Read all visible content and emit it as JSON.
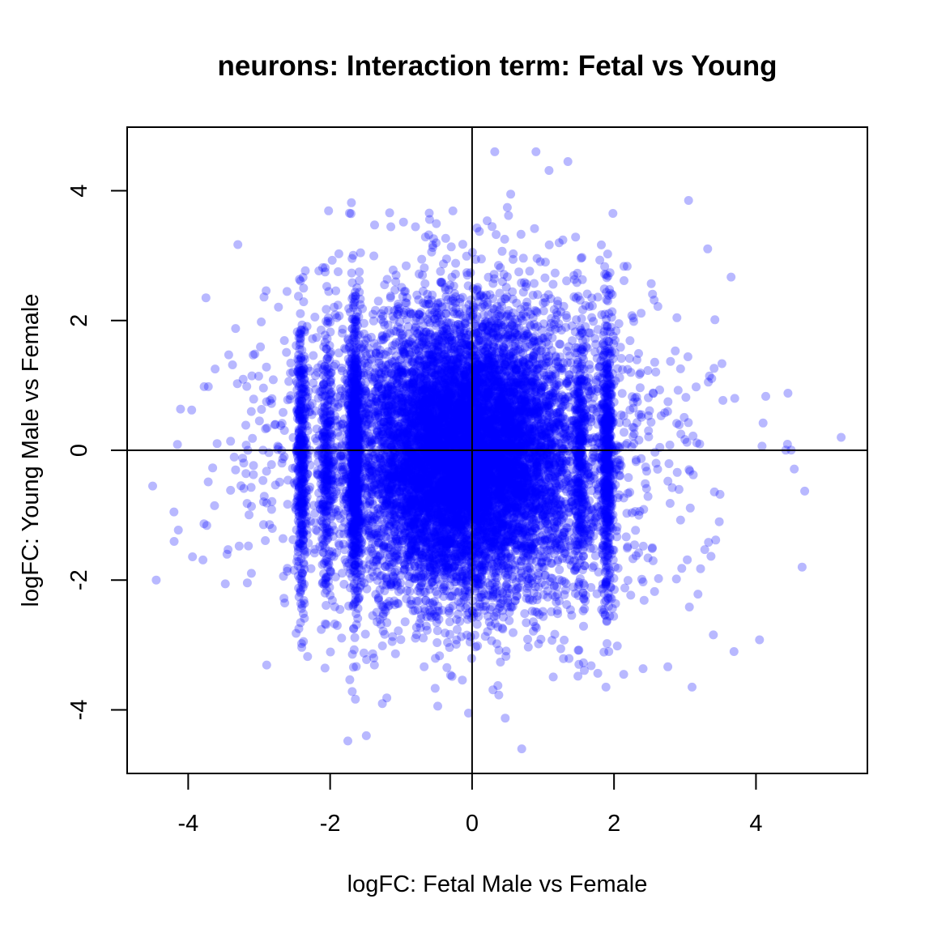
{
  "chart_data": {
    "type": "scatter",
    "title": "neurons: Interaction term: Fetal vs Young",
    "xlabel": "logFC: Fetal Male vs Female",
    "ylabel": "logFC: Young Male vs Female",
    "xlim": [
      -4.86,
      5.57
    ],
    "ylim": [
      -4.98,
      4.98
    ],
    "xticks": [
      -4,
      -2,
      0,
      2,
      4
    ],
    "yticks": [
      -4,
      -2,
      0,
      2,
      4
    ],
    "point_color": "#0000FF",
    "point_opacity": 0.28,
    "reference_lines": {
      "x": 0,
      "y": 0
    },
    "grid": false,
    "legend": "none",
    "point_count_approx": 13000,
    "density_core": {
      "x_center": -0.1,
      "y_center": -0.1,
      "x_sd": 0.75,
      "y_sd": 1.05
    },
    "notable_points": [
      {
        "x": 5.2,
        "y": 0.2
      },
      {
        "x": -4.5,
        "y": -0.55
      },
      {
        "x": -4.45,
        "y": -2.0
      },
      {
        "x": -4.2,
        "y": -0.95
      },
      {
        "x": -3.95,
        "y": 0.62
      },
      {
        "x": -3.75,
        "y": 2.35
      },
      {
        "x": -3.3,
        "y": 3.17
      },
      {
        "x": -1.75,
        "y": -4.48
      },
      {
        "x": 0.7,
        "y": -4.6
      },
      {
        "x": 0.9,
        "y": 4.6
      },
      {
        "x": 1.35,
        "y": 4.45
      },
      {
        "x": 0.32,
        "y": 4.6
      },
      {
        "x": 3.05,
        "y": 3.85
      },
      {
        "x": 3.1,
        "y": -3.65
      },
      {
        "x": 4.65,
        "y": -1.8
      },
      {
        "x": 4.05,
        "y": -2.92
      },
      {
        "x": 4.45,
        "y": 0.88
      },
      {
        "x": 4.1,
        "y": 0.42
      },
      {
        "x": 3.65,
        "y": 2.67
      },
      {
        "x": -0.05,
        "y": -4.05
      }
    ]
  }
}
